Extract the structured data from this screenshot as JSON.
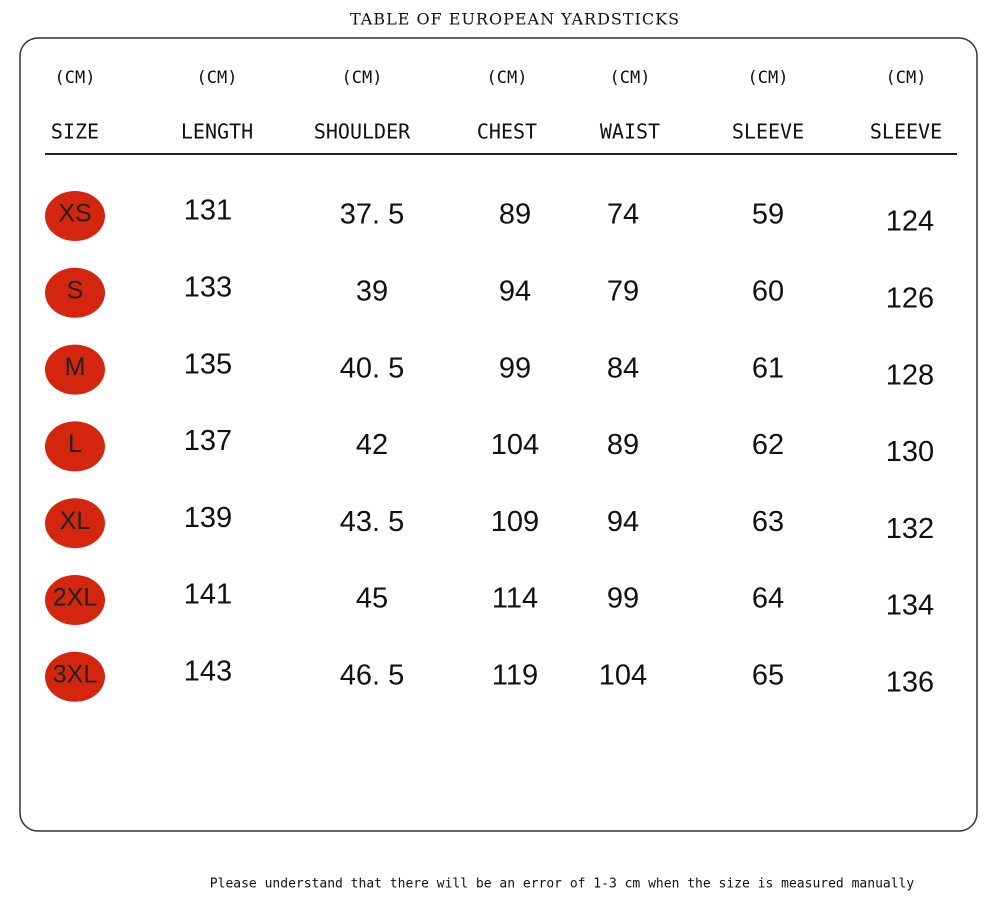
{
  "title": "TABLE OF EUROPEAN YARDSTICKS",
  "table": {
    "units": [
      "(CM)",
      "(CM)",
      "(CM)",
      "(CM)",
      "(CM)",
      "(CM)",
      "(CM)"
    ],
    "headers": [
      "SIZE",
      "LENGTH",
      "SHOULDER",
      "CHEST",
      "WAIST",
      "SLEEVE",
      "SLEEVE"
    ],
    "rows": [
      [
        "XS",
        "131",
        "37. 5",
        "89",
        "74",
        "59",
        "124"
      ],
      [
        "S",
        "133",
        "39",
        "94",
        "79",
        "60",
        "126"
      ],
      [
        "M",
        "135",
        "40. 5",
        "99",
        "84",
        "61",
        "128"
      ],
      [
        "L",
        "137",
        "42",
        "104",
        "89",
        "62",
        "130"
      ],
      [
        "XL",
        "139",
        "43. 5",
        "109",
        "94",
        "63",
        "132"
      ],
      [
        "2XL",
        "141",
        "45",
        "114",
        "99",
        "64",
        "134"
      ],
      [
        "3XL",
        "143",
        "46. 5",
        "119",
        "104",
        "65",
        "136"
      ]
    ]
  },
  "note": "Please understand that there will be an error of 1-3 cm when the size is measured manually"
}
